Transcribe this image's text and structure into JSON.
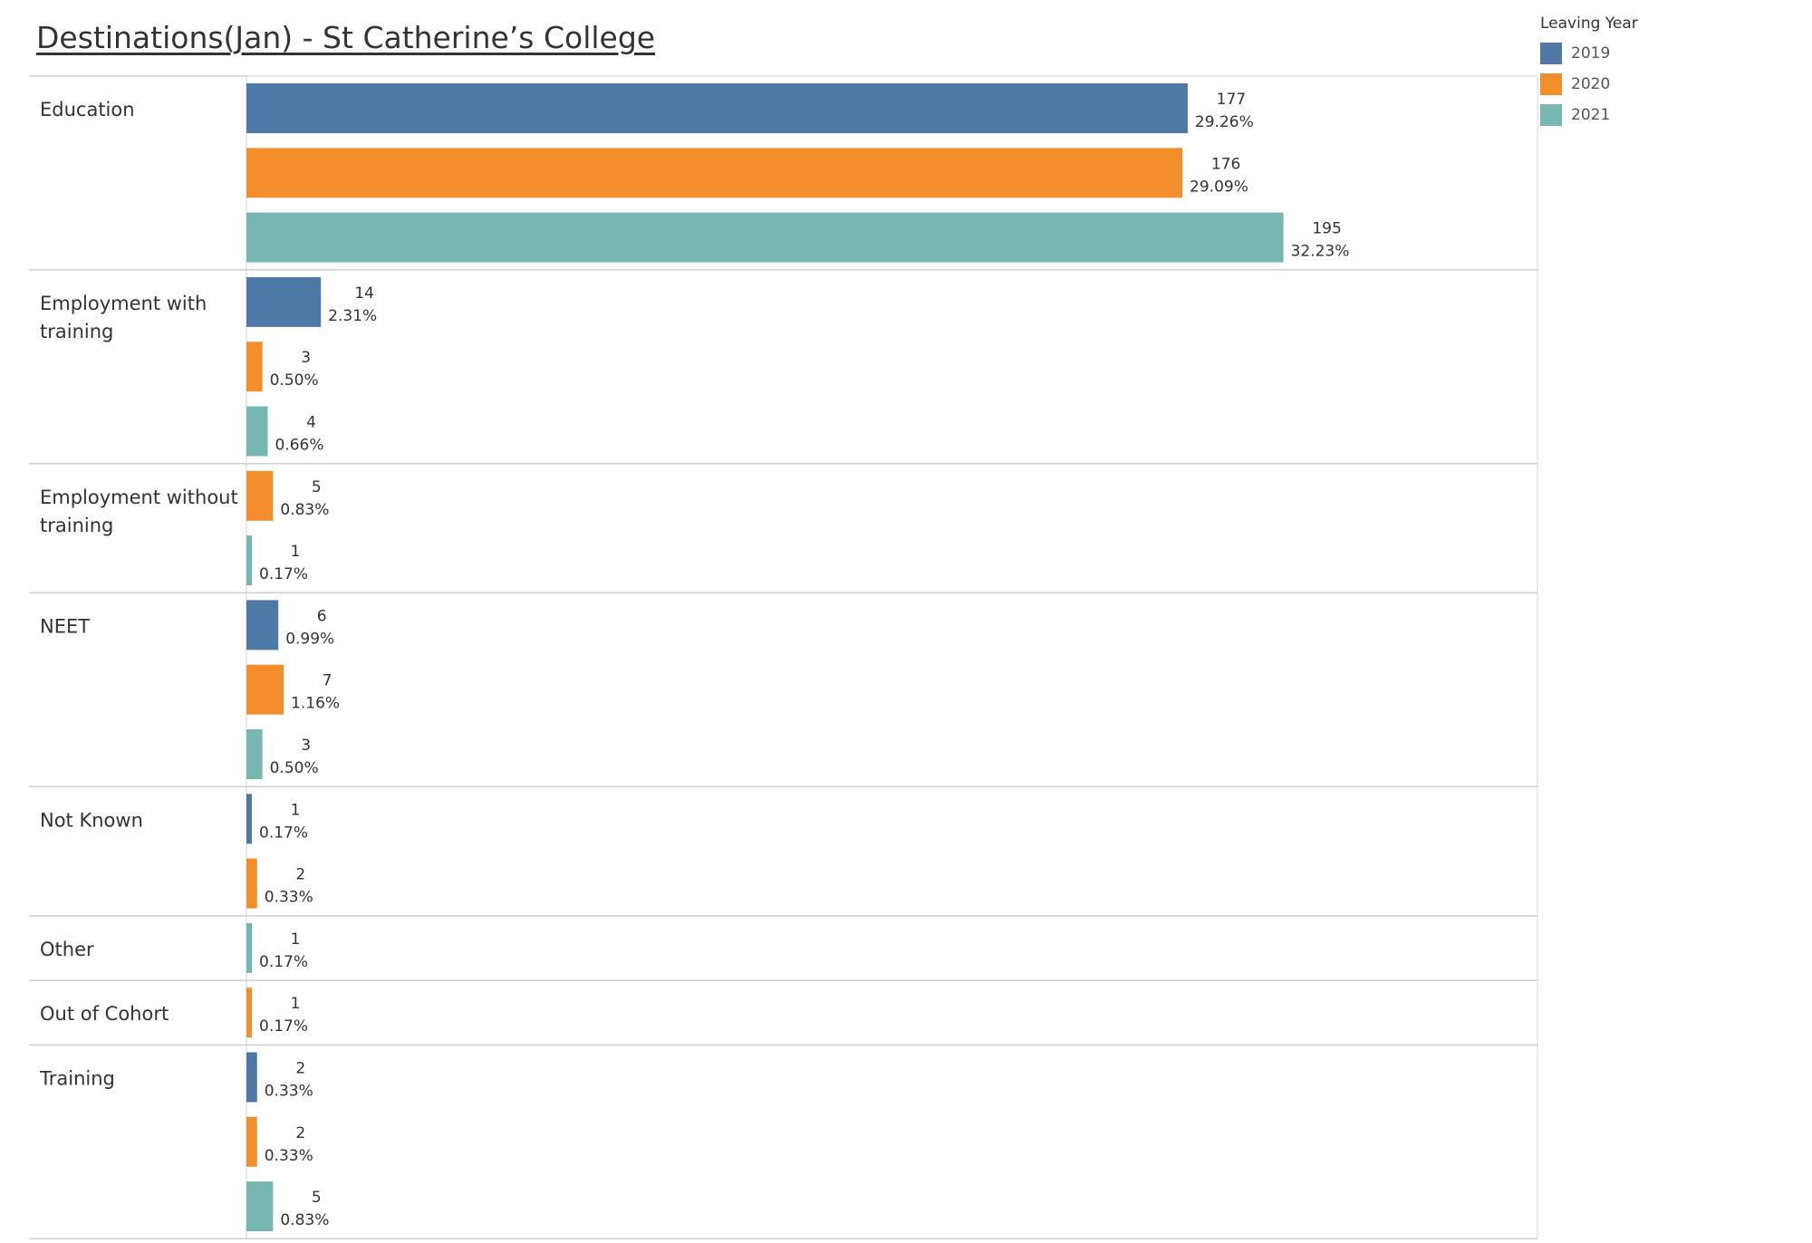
{
  "title": "Destinations(Jan) - St Catherine’s College",
  "legend": {
    "title": "Leaving Year",
    "items": [
      {
        "label": "2019",
        "color": "#4e79a7"
      },
      {
        "label": "2020",
        "color": "#f28e2b"
      },
      {
        "label": "2021",
        "color": "#76b7b2"
      }
    ]
  },
  "chart_data": {
    "type": "bar",
    "orientation": "horizontal",
    "grouped_by": "Leaving Year",
    "series_colors": {
      "2019": "#4e79a7",
      "2020": "#f28e2b",
      "2021": "#76b7b2"
    },
    "categories": [
      {
        "label": [
          "Education"
        ],
        "bars": [
          {
            "year": "2019",
            "value": 177,
            "pct": "29.26%"
          },
          {
            "year": "2020",
            "value": 176,
            "pct": "29.09%"
          },
          {
            "year": "2021",
            "value": 195,
            "pct": "32.23%"
          }
        ]
      },
      {
        "label": [
          "Employment with",
          "training"
        ],
        "bars": [
          {
            "year": "2019",
            "value": 14,
            "pct": "2.31%"
          },
          {
            "year": "2020",
            "value": 3,
            "pct": "0.50%"
          },
          {
            "year": "2021",
            "value": 4,
            "pct": "0.66%"
          }
        ]
      },
      {
        "label": [
          "Employment without",
          "training"
        ],
        "bars": [
          {
            "year": "2020",
            "value": 5,
            "pct": "0.83%"
          },
          {
            "year": "2021",
            "value": 1,
            "pct": "0.17%"
          }
        ]
      },
      {
        "label": [
          "NEET"
        ],
        "bars": [
          {
            "year": "2019",
            "value": 6,
            "pct": "0.99%"
          },
          {
            "year": "2020",
            "value": 7,
            "pct": "1.16%"
          },
          {
            "year": "2021",
            "value": 3,
            "pct": "0.50%"
          }
        ]
      },
      {
        "label": [
          "Not Known"
        ],
        "bars": [
          {
            "year": "2019",
            "value": 1,
            "pct": "0.17%"
          },
          {
            "year": "2020",
            "value": 2,
            "pct": "0.33%"
          }
        ]
      },
      {
        "label": [
          "Other"
        ],
        "bars": [
          {
            "year": "2021",
            "value": 1,
            "pct": "0.17%"
          }
        ]
      },
      {
        "label": [
          "Out of Cohort"
        ],
        "bars": [
          {
            "year": "2020",
            "value": 1,
            "pct": "0.17%"
          }
        ]
      },
      {
        "label": [
          "Training"
        ],
        "bars": [
          {
            "year": "2019",
            "value": 2,
            "pct": "0.33%"
          },
          {
            "year": "2020",
            "value": 2,
            "pct": "0.33%"
          },
          {
            "year": "2021",
            "value": 5,
            "pct": "0.83%"
          }
        ]
      }
    ],
    "xlim": [
      0,
      207
    ],
    "grid": false,
    "legend_position": "top-right"
  }
}
